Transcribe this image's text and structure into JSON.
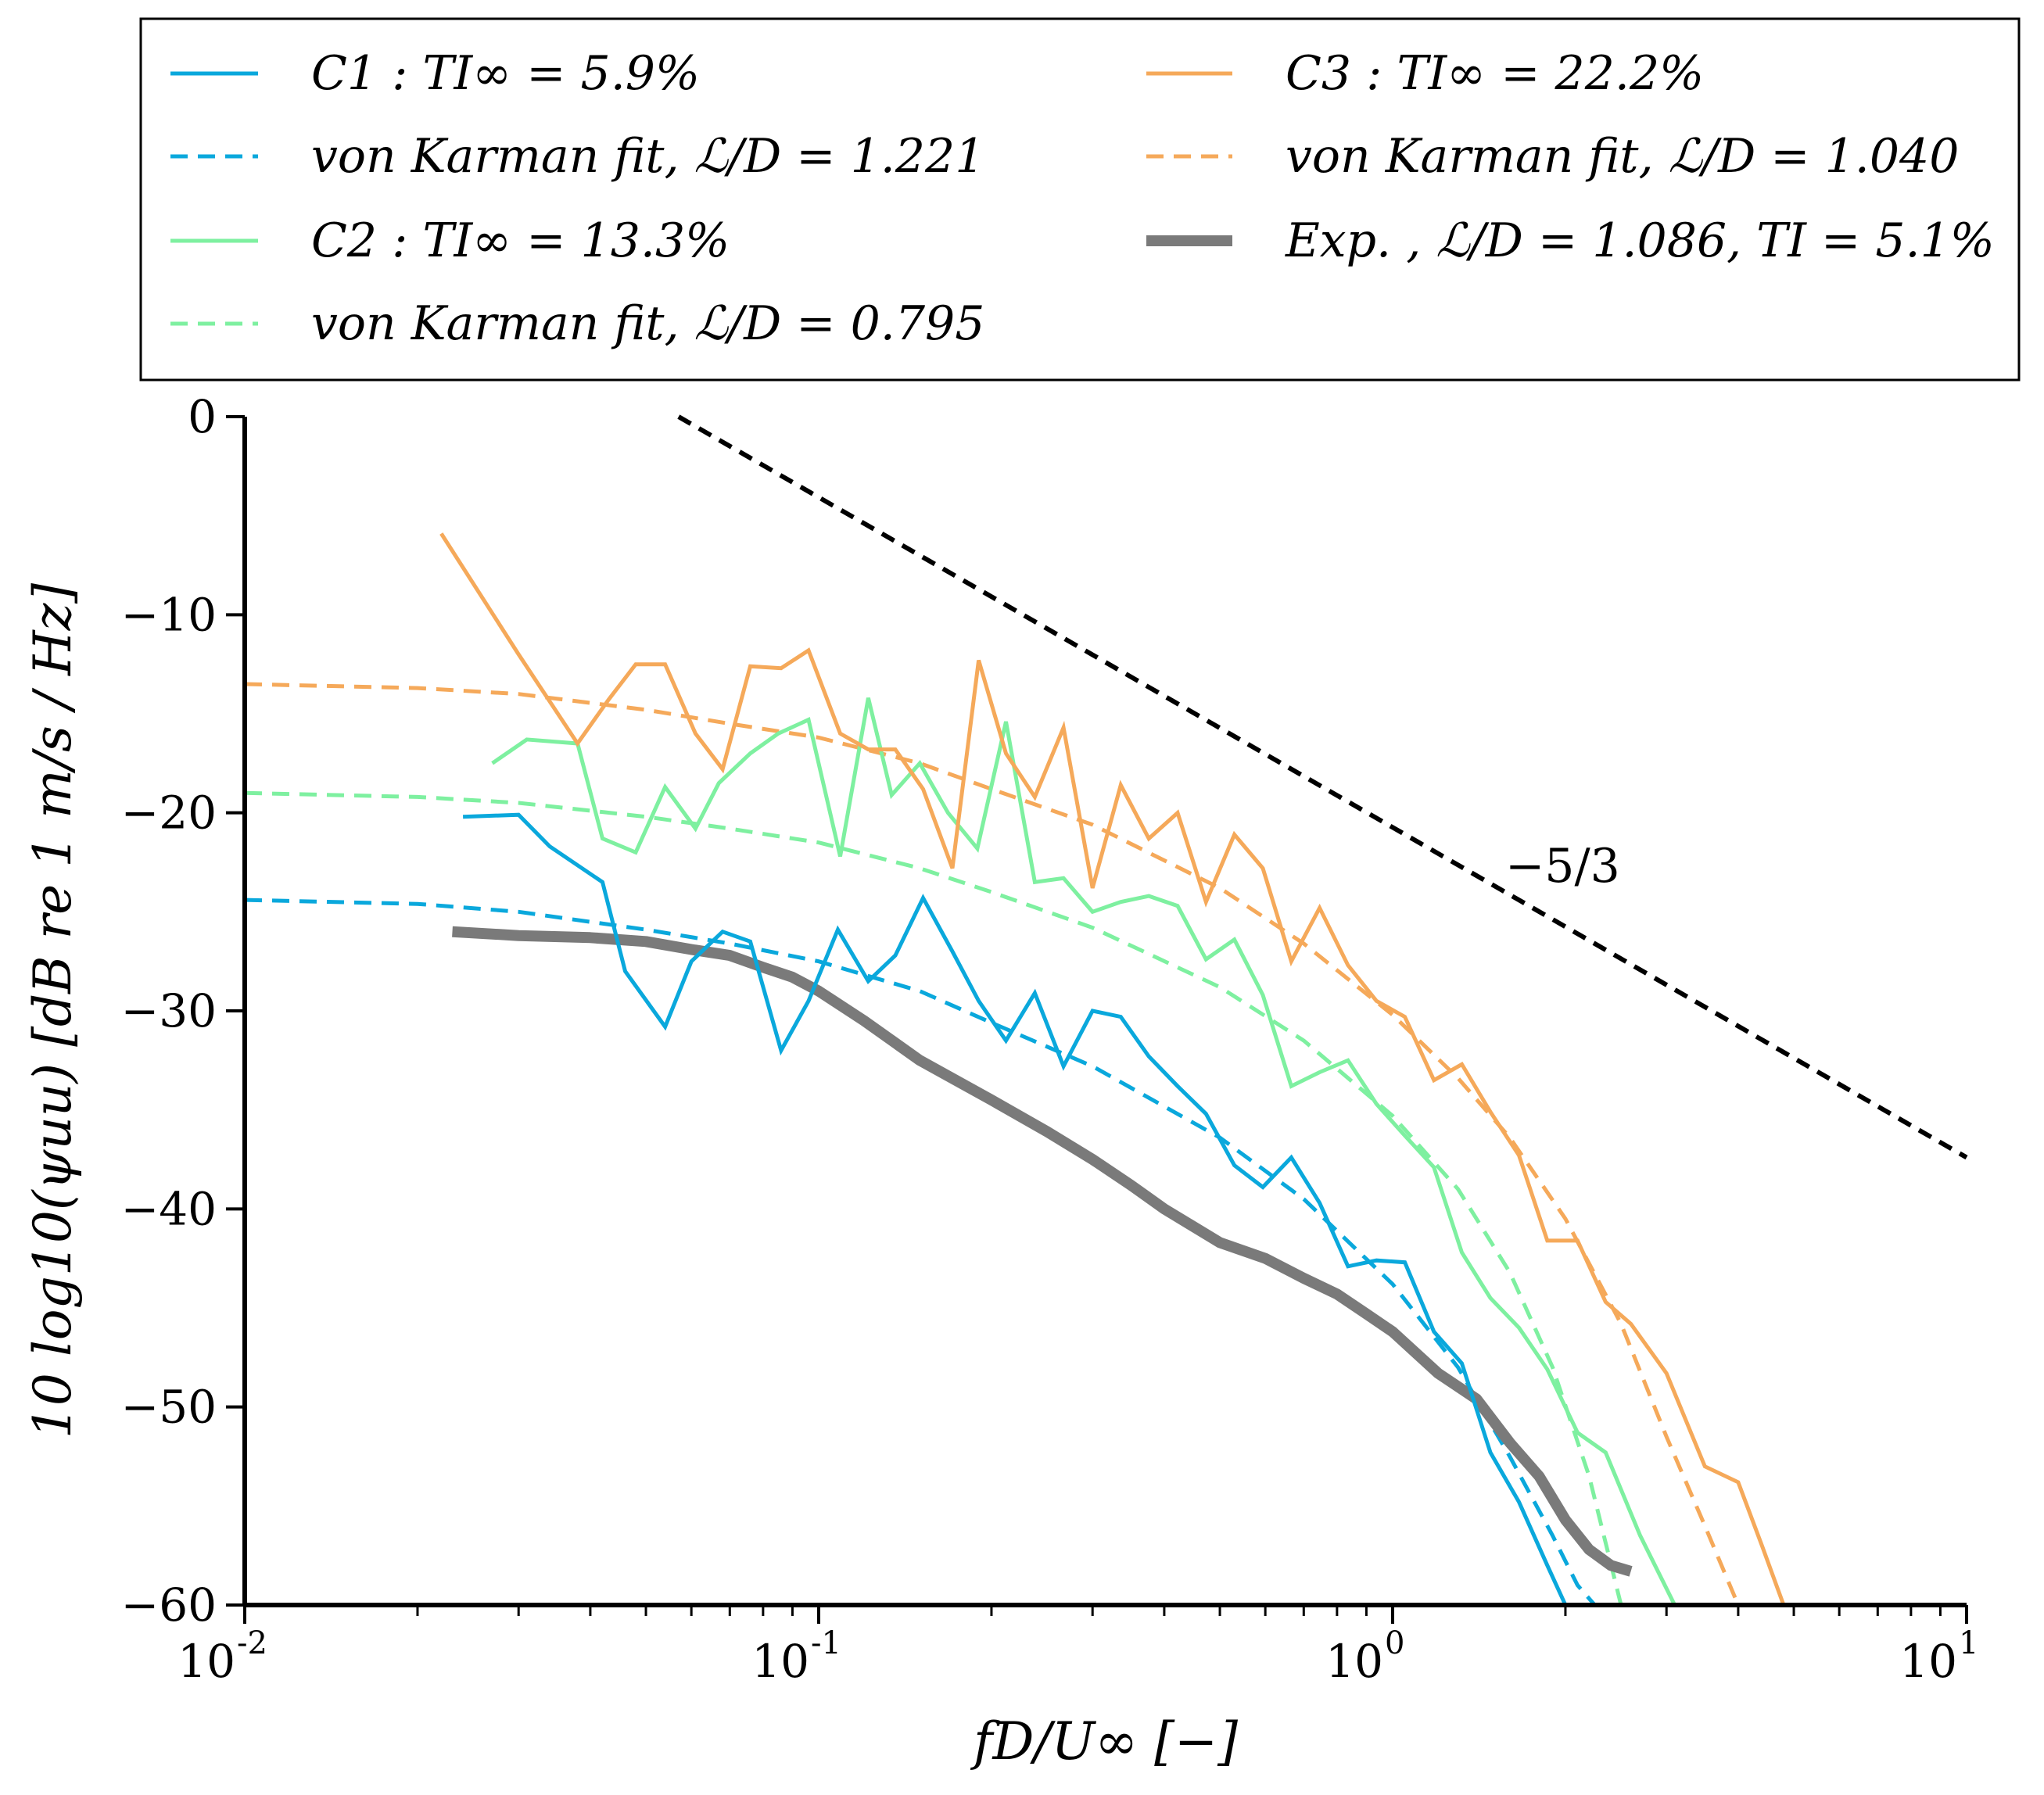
{
  "chart_data": {
    "type": "line",
    "x_scale": "log",
    "xlim": [
      0.01,
      10
    ],
    "ylim": [
      -60,
      0
    ],
    "xlabel": "fD/U∞ [−]",
    "ylabel": "10 log10(ψuu) [dB re 1 m/s / Hz]",
    "x_ticks": [
      {
        "value": 0.01,
        "base": "10",
        "exp": "-2"
      },
      {
        "value": 0.1,
        "base": "10",
        "exp": "-1"
      },
      {
        "value": 1,
        "base": "10",
        "exp": "0"
      },
      {
        "value": 10,
        "base": "10",
        "exp": "1"
      }
    ],
    "y_ticks": [
      0,
      -10,
      -20,
      -30,
      -40,
      -50,
      -60
    ],
    "grid": false,
    "legend_position": "top, outside",
    "colors": {
      "c1": "#0aa8dc",
      "c2": "#7ef0a0",
      "c3": "#f5a95a",
      "exp": "#7a7a7a",
      "slope": "#000000"
    },
    "series": [
      {
        "name": "C1 : TI∞ = 5.9%",
        "key": "c1",
        "style": "solid",
        "x": [
          0.024,
          0.03,
          0.034,
          0.042,
          0.046,
          0.054,
          0.06,
          0.068,
          0.076,
          0.086,
          0.096,
          0.108,
          0.122,
          0.136,
          0.152,
          0.171,
          0.19,
          0.212,
          0.238,
          0.267,
          0.3,
          0.336,
          0.376,
          0.422,
          0.473,
          0.53,
          0.594,
          0.666,
          0.746,
          0.836,
          0.937,
          1.05,
          1.18,
          1.32,
          1.48,
          1.66,
          1.86,
          2.0
        ],
        "y": [
          -20.2,
          -20.1,
          -21.7,
          -23.5,
          -28.0,
          -30.8,
          -27.5,
          -26.0,
          -26.5,
          -32.0,
          -29.5,
          -25.9,
          -28.5,
          -27.2,
          -24.3,
          -27.0,
          -29.5,
          -31.5,
          -29.1,
          -32.8,
          -30.0,
          -30.3,
          -32.3,
          -33.8,
          -35.2,
          -37.8,
          -38.9,
          -37.4,
          -39.7,
          -42.9,
          -42.6,
          -42.7,
          -46.2,
          -47.8,
          -52.3,
          -54.8,
          -58.0,
          -60.0
        ]
      },
      {
        "name": "von Karman fit, ℒ/D = 1.221",
        "key": "c1",
        "style": "dashed",
        "x": [
          0.01,
          0.02,
          0.03,
          0.05,
          0.07,
          0.1,
          0.15,
          0.2,
          0.3,
          0.5,
          0.7,
          1.0,
          1.3,
          1.6,
          1.9,
          2.1,
          2.25
        ],
        "y": [
          -24.4,
          -24.6,
          -25.0,
          -25.9,
          -26.6,
          -27.5,
          -29.0,
          -30.6,
          -32.8,
          -36.4,
          -39.5,
          -43.8,
          -48.0,
          -52.5,
          -56.5,
          -59.0,
          -60.0
        ]
      },
      {
        "name": "C2 : TI∞ = 13.3%",
        "key": "c2",
        "style": "solid",
        "x": [
          0.027,
          0.031,
          0.038,
          0.042,
          0.048,
          0.054,
          0.061,
          0.067,
          0.076,
          0.085,
          0.096,
          0.109,
          0.122,
          0.134,
          0.15,
          0.168,
          0.189,
          0.212,
          0.238,
          0.267,
          0.3,
          0.336,
          0.376,
          0.422,
          0.473,
          0.53,
          0.594,
          0.666,
          0.746,
          0.836,
          0.937,
          1.05,
          1.18,
          1.32,
          1.48,
          1.66,
          1.86,
          2.1,
          2.35,
          2.7,
          3.1
        ],
        "y": [
          -17.5,
          -16.3,
          -16.5,
          -21.3,
          -22.0,
          -18.7,
          -20.8,
          -18.5,
          -17.0,
          -16.0,
          -15.3,
          -22.2,
          -14.2,
          -19.1,
          -17.5,
          -20.0,
          -21.8,
          -15.4,
          -23.5,
          -23.3,
          -25.0,
          -24.5,
          -24.2,
          -24.7,
          -27.4,
          -26.4,
          -29.2,
          -33.8,
          -33.1,
          -32.5,
          -34.7,
          -36.3,
          -37.9,
          -42.2,
          -44.5,
          -46.0,
          -48.1,
          -51.3,
          -52.3,
          -56.5,
          -60.0
        ]
      },
      {
        "name": "von Karman fit, ℒ/D = 0.795",
        "key": "c2",
        "style": "dashed",
        "x": [
          0.01,
          0.02,
          0.03,
          0.05,
          0.07,
          0.1,
          0.15,
          0.2,
          0.3,
          0.5,
          0.7,
          1.0,
          1.3,
          1.6,
          1.9,
          2.2,
          2.5
        ],
        "y": [
          -19.0,
          -19.2,
          -19.5,
          -20.2,
          -20.8,
          -21.5,
          -22.8,
          -24.0,
          -25.8,
          -28.8,
          -31.5,
          -35.3,
          -39.0,
          -43.2,
          -48.0,
          -53.5,
          -60.0
        ]
      },
      {
        "name": "C3 : TI∞ = 22.2%",
        "key": "c3",
        "style": "solid",
        "x": [
          0.022,
          0.03,
          0.038,
          0.043,
          0.048,
          0.054,
          0.061,
          0.068,
          0.076,
          0.086,
          0.096,
          0.109,
          0.122,
          0.136,
          0.152,
          0.171,
          0.19,
          0.212,
          0.238,
          0.267,
          0.3,
          0.336,
          0.376,
          0.422,
          0.473,
          0.53,
          0.594,
          0.666,
          0.746,
          0.836,
          0.937,
          1.05,
          1.18,
          1.32,
          1.48,
          1.66,
          1.86,
          2.1,
          2.35,
          2.6,
          3.0,
          3.5,
          4.0,
          4.4,
          4.8
        ],
        "y": [
          -5.9,
          -12.0,
          -16.5,
          -14.3,
          -12.5,
          -12.5,
          -16.0,
          -17.8,
          -12.6,
          -12.7,
          -11.8,
          -16.0,
          -16.8,
          -16.8,
          -18.8,
          -22.8,
          -12.3,
          -17.0,
          -19.2,
          -15.7,
          -23.8,
          -18.6,
          -21.3,
          -20.0,
          -24.5,
          -21.1,
          -22.8,
          -27.5,
          -24.8,
          -27.7,
          -29.5,
          -30.3,
          -33.5,
          -32.7,
          -35.1,
          -37.3,
          -41.6,
          -41.6,
          -44.7,
          -45.8,
          -48.3,
          -53.0,
          -53.8,
          -57.0,
          -60.0
        ]
      },
      {
        "name": "von Karman fit, ℒ/D = 1.040",
        "key": "c3",
        "style": "dashed",
        "x": [
          0.01,
          0.02,
          0.03,
          0.05,
          0.07,
          0.1,
          0.15,
          0.2,
          0.3,
          0.5,
          0.7,
          1.0,
          1.3,
          1.6,
          2.0,
          2.5,
          3.0,
          3.5,
          4.0
        ],
        "y": [
          -13.5,
          -13.7,
          -14.0,
          -14.8,
          -15.5,
          -16.2,
          -17.5,
          -18.8,
          -20.6,
          -23.8,
          -26.6,
          -30.2,
          -33.4,
          -36.4,
          -40.5,
          -45.8,
          -51.5,
          -56.0,
          -60.0
        ]
      },
      {
        "name": "Exp. , ℒ/D = 1.086, TI = 5.1%",
        "key": "exp",
        "style": "thick",
        "x": [
          0.023,
          0.03,
          0.04,
          0.05,
          0.06,
          0.07,
          0.08,
          0.09,
          0.1,
          0.12,
          0.15,
          0.2,
          0.25,
          0.3,
          0.35,
          0.4,
          0.5,
          0.6,
          0.7,
          0.8,
          0.9,
          1.0,
          1.2,
          1.4,
          1.6,
          1.8,
          2.0,
          2.2,
          2.4,
          2.6
        ],
        "y": [
          -26.0,
          -26.2,
          -26.3,
          -26.5,
          -26.9,
          -27.2,
          -27.8,
          -28.3,
          -29.0,
          -30.5,
          -32.5,
          -34.5,
          -36.1,
          -37.5,
          -38.8,
          -40.0,
          -41.7,
          -42.5,
          -43.5,
          -44.3,
          -45.3,
          -46.2,
          -48.3,
          -49.6,
          -51.8,
          -53.5,
          -55.7,
          -57.2,
          -58.0,
          -58.3
        ]
      },
      {
        "name": "−5/3 reference",
        "key": "slope",
        "style": "dashed-black",
        "x": [
          0.057,
          10
        ],
        "y": [
          0.0,
          -37.4
        ]
      }
    ],
    "annotation": "−5/3",
    "legend": {
      "col1": [
        {
          "series": 0,
          "text": "C1 : TI∞ = 5.9%"
        },
        {
          "series": 1,
          "text": "von Karman fit, ℒ/D = 1.221"
        },
        {
          "series": 2,
          "text": "C2 : TI∞ = 13.3%"
        },
        {
          "series": 3,
          "text": "von Karman fit, ℒ/D = 0.795"
        }
      ],
      "col2": [
        {
          "series": 4,
          "text": "C3 : TI∞ = 22.2%"
        },
        {
          "series": 5,
          "text": "von Karman fit, ℒ/D = 1.040"
        },
        {
          "series": 6,
          "text": "Exp. , ℒ/D = 1.086, TI = 5.1%"
        }
      ]
    }
  }
}
